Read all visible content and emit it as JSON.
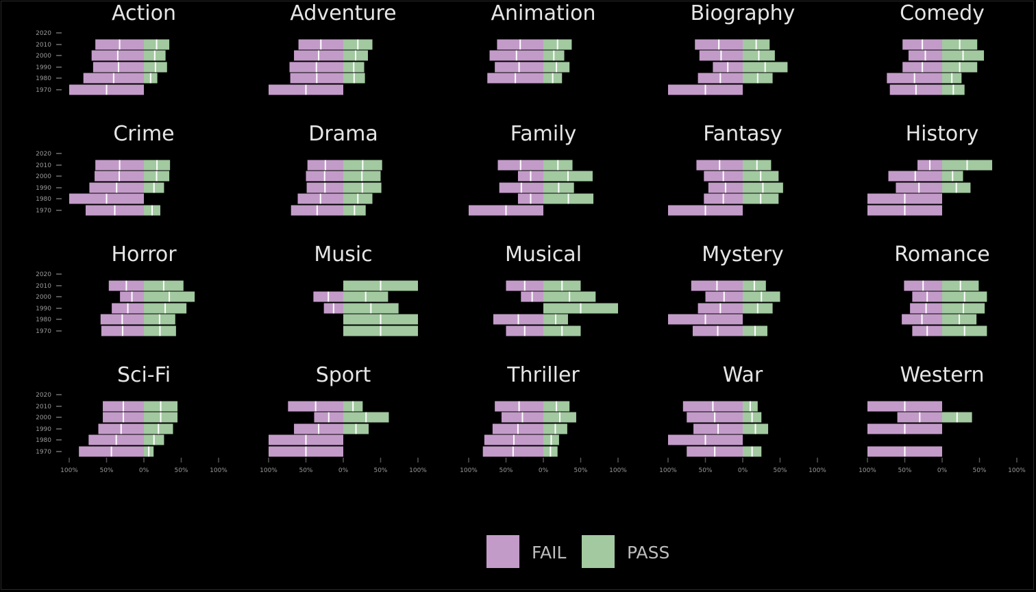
{
  "chart_data": {
    "type": "bar",
    "orientation": "horizontal-diverging",
    "years": [
      "2020",
      "2010",
      "2000",
      "1990",
      "1980",
      "1970"
    ],
    "x_tick_labels": [
      "100%",
      "50%",
      "0%",
      "50%",
      "100%"
    ],
    "xlim": [
      -1,
      1
    ],
    "grid": false,
    "legend_position": "bottom",
    "series": [
      {
        "name": "FAIL",
        "color": "#c39bc9"
      },
      {
        "name": "PASS",
        "color": "#a2c9a0"
      }
    ],
    "panels": [
      {
        "title": "Action",
        "fail": [
          0,
          0.65,
          0.7,
          0.68,
          0.81,
          1.0
        ],
        "pass": [
          0,
          0.34,
          0.29,
          0.31,
          0.18,
          0
        ]
      },
      {
        "title": "Adventure",
        "fail": [
          0,
          0.6,
          0.66,
          0.72,
          0.71,
          1.0
        ],
        "pass": [
          0,
          0.39,
          0.33,
          0.28,
          0.29,
          0
        ]
      },
      {
        "title": "Animation",
        "fail": [
          0,
          0.62,
          0.72,
          0.65,
          0.75,
          0
        ],
        "pass": [
          0,
          0.38,
          0.28,
          0.35,
          0.25,
          0
        ]
      },
      {
        "title": "Biography",
        "fail": [
          0,
          0.64,
          0.58,
          0.4,
          0.6,
          1.0
        ],
        "pass": [
          0,
          0.36,
          0.43,
          0.6,
          0.4,
          0
        ]
      },
      {
        "title": "Comedy",
        "fail": [
          0,
          0.53,
          0.45,
          0.53,
          0.74,
          0.7
        ],
        "pass": [
          0,
          0.47,
          0.56,
          0.47,
          0.26,
          0.3
        ]
      },
      {
        "title": "Crime",
        "fail": [
          0,
          0.65,
          0.66,
          0.73,
          1.0,
          0.78
        ],
        "pass": [
          0,
          0.35,
          0.34,
          0.27,
          0,
          0.22
        ]
      },
      {
        "title": "Drama",
        "fail": [
          0,
          0.48,
          0.5,
          0.49,
          0.61,
          0.7
        ],
        "pass": [
          0,
          0.52,
          0.5,
          0.51,
          0.39,
          0.3
        ]
      },
      {
        "title": "Family",
        "fail": [
          0,
          0.61,
          0.34,
          0.59,
          0.34,
          1.0
        ],
        "pass": [
          0,
          0.39,
          0.66,
          0.41,
          0.67,
          0
        ]
      },
      {
        "title": "Fantasy",
        "fail": [
          0,
          0.62,
          0.52,
          0.46,
          0.52,
          1.0
        ],
        "pass": [
          0,
          0.38,
          0.48,
          0.54,
          0.48,
          0
        ]
      },
      {
        "title": "History",
        "fail": [
          0,
          0.33,
          0.72,
          0.62,
          1.0,
          1.0
        ],
        "pass": [
          0,
          0.67,
          0.28,
          0.38,
          0,
          0
        ]
      },
      {
        "title": "Horror",
        "fail": [
          0,
          0.47,
          0.32,
          0.43,
          0.58,
          0.57
        ],
        "pass": [
          0,
          0.53,
          0.68,
          0.57,
          0.42,
          0.43
        ]
      },
      {
        "title": "Music",
        "fail": [
          0,
          0,
          0.4,
          0.26,
          0,
          0
        ],
        "pass": [
          0,
          1.0,
          0.6,
          0.74,
          1.0,
          1.0
        ]
      },
      {
        "title": "Musical",
        "fail": [
          0,
          0.5,
          0.3,
          0,
          0.67,
          0.5
        ],
        "pass": [
          0,
          0.5,
          0.7,
          1.0,
          0.33,
          0.5
        ]
      },
      {
        "title": "Mystery",
        "fail": [
          0,
          0.69,
          0.5,
          0.6,
          1.0,
          0.67
        ],
        "pass": [
          0,
          0.31,
          0.5,
          0.4,
          0,
          0.33
        ]
      },
      {
        "title": "Romance",
        "fail": [
          0,
          0.51,
          0.4,
          0.43,
          0.54,
          0.4
        ],
        "pass": [
          0,
          0.49,
          0.6,
          0.57,
          0.46,
          0.6
        ]
      },
      {
        "title": "Sci-Fi",
        "fail": [
          0,
          0.55,
          0.55,
          0.61,
          0.74,
          0.87
        ],
        "pass": [
          0,
          0.45,
          0.45,
          0.39,
          0.27,
          0.13
        ]
      },
      {
        "title": "Sport",
        "fail": [
          0,
          0.74,
          0.39,
          0.66,
          1.0,
          1.0
        ],
        "pass": [
          0,
          0.26,
          0.61,
          0.34,
          0,
          0
        ]
      },
      {
        "title": "Thriller",
        "fail": [
          0,
          0.65,
          0.56,
          0.68,
          0.79,
          0.81
        ],
        "pass": [
          0,
          0.35,
          0.44,
          0.32,
          0.21,
          0.19
        ]
      },
      {
        "title": "War",
        "fail": [
          0,
          0.8,
          0.75,
          0.66,
          1.0,
          0.75
        ],
        "pass": [
          0,
          0.2,
          0.25,
          0.34,
          0,
          0.25
        ]
      },
      {
        "title": "Western",
        "fail": [
          0,
          1.0,
          0.6,
          1.0,
          0,
          1.0
        ],
        "pass": [
          0,
          0,
          0.4,
          0,
          0,
          0
        ]
      }
    ]
  }
}
